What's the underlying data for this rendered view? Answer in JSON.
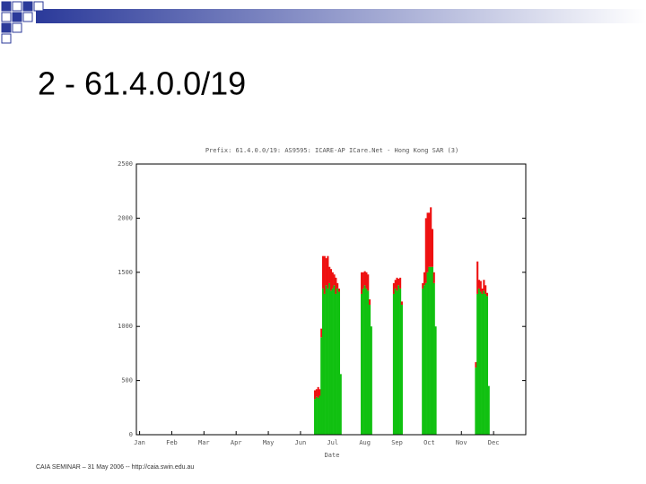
{
  "slide_title": "2 - 61.4.0.0/19",
  "footer": "CAIA SEMINAR – 31 May 2006 -- http://caia.swin.edu.au",
  "chart_data": {
    "type": "bar",
    "stacked": true,
    "title": "Prefix: 61.4.0.0/19: AS9595: ICARE-AP ICare.Net - Hong Kong SAR (3)",
    "xlabel": "Date",
    "x": [
      5.45,
      5.5,
      5.55,
      5.6,
      5.65,
      5.7,
      5.75,
      5.8,
      5.85,
      5.9,
      5.95,
      6.0,
      6.05,
      6.1,
      6.15,
      6.2,
      6.25,
      6.9,
      6.95,
      7.0,
      7.05,
      7.1,
      7.15,
      7.2,
      7.9,
      7.95,
      8.0,
      8.05,
      8.1,
      8.15,
      8.8,
      8.85,
      8.9,
      8.95,
      9.0,
      9.05,
      9.1,
      9.15,
      9.2,
      10.45,
      10.5,
      10.55,
      10.6,
      10.65,
      10.7,
      10.75,
      10.8,
      10.85
    ],
    "series": [
      {
        "color": "#11c111",
        "values": [
          330,
          350,
          340,
          360,
          900,
          1350,
          1300,
          1380,
          1350,
          1400,
          1330,
          1350,
          1380,
          1300,
          1350,
          1320,
          560,
          1300,
          1350,
          1380,
          1350,
          1330,
          1200,
          1000,
          1300,
          1350,
          1330,
          1380,
          1350,
          1200,
          1350,
          1380,
          1400,
          1500,
          1550,
          1550,
          1550,
          1400,
          1000,
          620,
          1300,
          1350,
          1320,
          1300,
          1330,
          1300,
          1280,
          450
        ]
      },
      {
        "color": "#ee1111",
        "values": [
          80,
          70,
          100,
          60,
          80,
          300,
          350,
          250,
          300,
          150,
          200,
          150,
          100,
          150,
          50,
          30,
          0,
          200,
          150,
          130,
          150,
          150,
          50,
          0,
          100,
          80,
          120,
          60,
          100,
          30,
          50,
          120,
          600,
          550,
          500,
          550,
          350,
          100,
          0,
          50,
          300,
          80,
          100,
          50,
          100,
          80,
          30,
          0
        ]
      }
    ],
    "xlim": [
      -0.1,
      12
    ],
    "xticks": [
      {
        "value": 0,
        "label": "Jan"
      },
      {
        "value": 1,
        "label": "Feb"
      },
      {
        "value": 2,
        "label": "Mar"
      },
      {
        "value": 3,
        "label": "Apr"
      },
      {
        "value": 4,
        "label": "May"
      },
      {
        "value": 5,
        "label": "Jun"
      },
      {
        "value": 6,
        "label": "Jul"
      },
      {
        "value": 7,
        "label": "Aug"
      },
      {
        "value": 8,
        "label": "Sep"
      },
      {
        "value": 9,
        "label": "Oct"
      },
      {
        "value": 10,
        "label": "Nov"
      },
      {
        "value": 11,
        "label": "Dec"
      }
    ],
    "ylim": [
      0,
      2500
    ],
    "yticks": [
      0,
      500,
      1000,
      1500,
      2000,
      2500
    ]
  }
}
